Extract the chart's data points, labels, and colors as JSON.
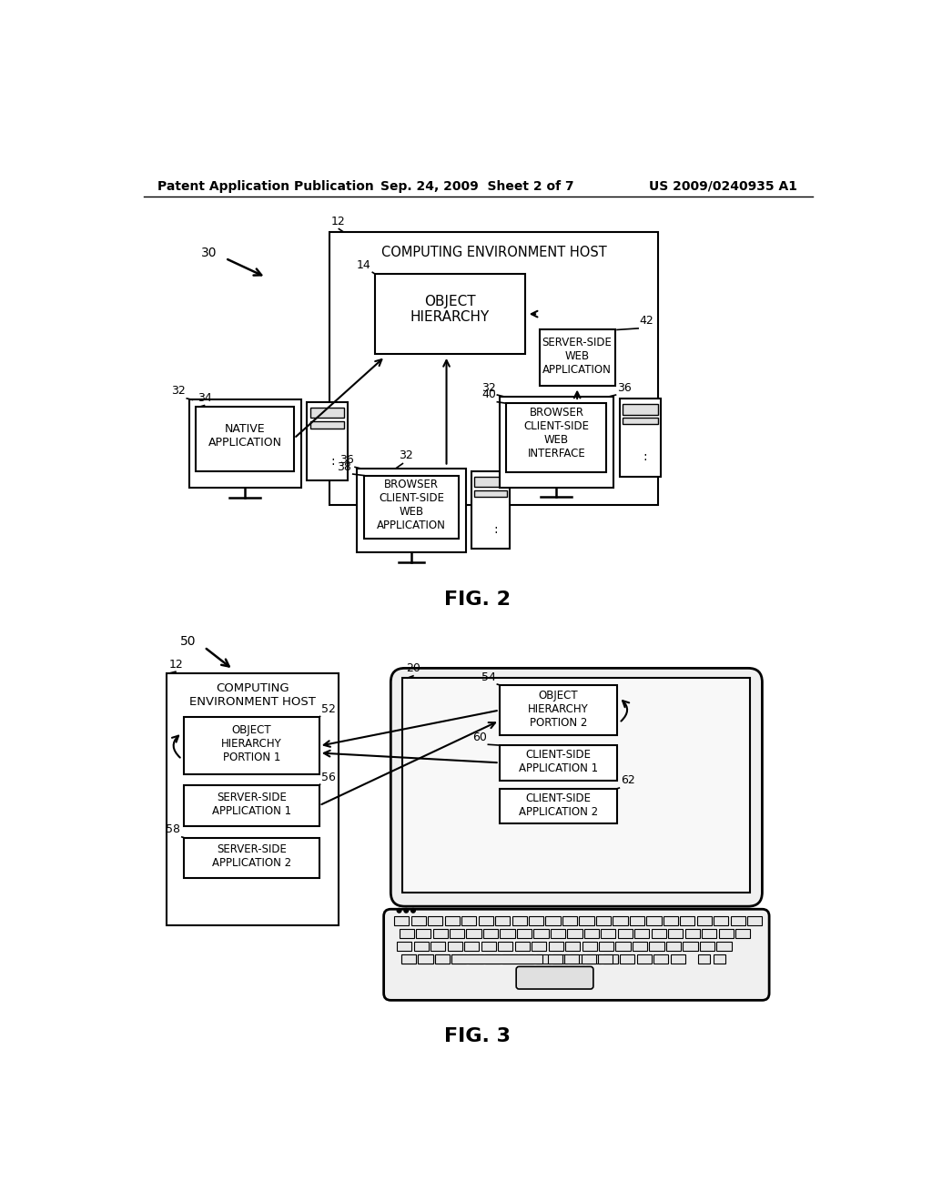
{
  "header_left": "Patent Application Publication",
  "header_center": "Sep. 24, 2009  Sheet 2 of 7",
  "header_right": "US 2009/0240935 A1",
  "fig2_label": "FIG. 2",
  "fig3_label": "FIG. 3",
  "bg_color": "#ffffff",
  "text_color": "#000000"
}
